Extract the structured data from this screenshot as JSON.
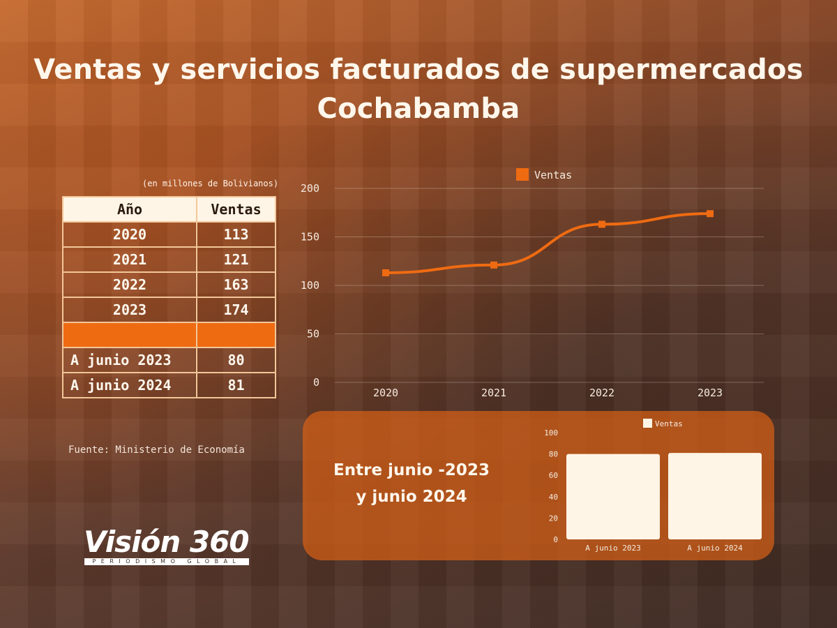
{
  "title_line1": "Ventas y servicios facturados de supermercados",
  "title_line2": "Cochabamba",
  "units_note": "(en millones de Bolivianos)",
  "table": {
    "headers": [
      "Año",
      "Ventas"
    ],
    "rows": [
      [
        "2020",
        "113"
      ],
      [
        "2021",
        "121"
      ],
      [
        "2022",
        "163"
      ],
      [
        "2023",
        "174"
      ],
      [
        "A junio 2023",
        "80"
      ],
      [
        "A junio 2024",
        "81"
      ]
    ]
  },
  "source_text": "Fuente: Ministerio de Economía",
  "logo": {
    "name": "Visión 360",
    "tagline": "PERIODISMO GLOBAL"
  },
  "panel_text": {
    "line1": "Entre junio -2023",
    "line2": "y junio 2024"
  },
  "colors": {
    "accent": "#ef6b12",
    "panel": "#d66016",
    "bar": "#fff5e6"
  },
  "chart_data": [
    {
      "type": "line",
      "categories": [
        "2020",
        "2021",
        "2022",
        "2023"
      ],
      "series": [
        {
          "name": "Ventas",
          "values": [
            113,
            121,
            163,
            174
          ],
          "color": "#ef6b12"
        }
      ],
      "ylim": [
        0,
        200
      ],
      "yticks": [
        0,
        50,
        100,
        150,
        200
      ],
      "legend": "top",
      "grid": true
    },
    {
      "type": "bar",
      "categories": [
        "A junio 2023",
        "A junio 2024"
      ],
      "series": [
        {
          "name": "Ventas",
          "values": [
            80,
            81
          ],
          "color": "#fff5e6"
        }
      ],
      "ylim": [
        0,
        100
      ],
      "yticks": [
        0,
        20,
        40,
        60,
        80,
        100
      ],
      "legend": "top",
      "grid": false
    }
  ]
}
